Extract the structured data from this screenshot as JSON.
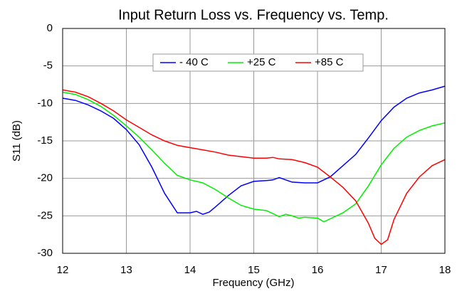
{
  "chart_data": {
    "type": "line",
    "title": "Input Return Loss vs. Frequency vs. Temp.",
    "xlabel": "Frequency (GHz)",
    "ylabel": "S11 (dB)",
    "xlim": [
      12,
      18
    ],
    "xticks": [
      12,
      13,
      14,
      15,
      16,
      17,
      18
    ],
    "ylim": [
      -30,
      0
    ],
    "yticks": [
      0,
      -5,
      -10,
      -15,
      -20,
      -25,
      -30
    ],
    "grid": true,
    "legend": "top",
    "series": [
      {
        "name": "- 40 C",
        "color": "#0000ff",
        "x": [
          12,
          12.2,
          12.4,
          12.6,
          12.8,
          13,
          13.2,
          13.4,
          13.6,
          13.8,
          14,
          14.1,
          14.2,
          14.3,
          14.4,
          14.6,
          14.8,
          15,
          15.2,
          15.3,
          15.4,
          15.5,
          15.6,
          15.8,
          16,
          16.2,
          16.4,
          16.6,
          16.8,
          17,
          17.2,
          17.4,
          17.6,
          17.8,
          18
        ],
        "values": [
          -9.3,
          -9.6,
          -10.2,
          -11,
          -12,
          -13.5,
          -15.5,
          -18.5,
          -22,
          -24.6,
          -24.6,
          -24.4,
          -24.8,
          -24.5,
          -23.8,
          -22.3,
          -21,
          -20.4,
          -20.3,
          -20.2,
          -19.9,
          -20.2,
          -20.5,
          -20.6,
          -20.6,
          -19.8,
          -18.3,
          -16.8,
          -14.6,
          -12.3,
          -10.5,
          -9.3,
          -8.6,
          -8.2,
          -7.7
        ]
      },
      {
        "name": "+25 C",
        "color": "#00ee00",
        "x": [
          12,
          12.2,
          12.4,
          12.6,
          12.8,
          13,
          13.2,
          13.4,
          13.6,
          13.8,
          14,
          14.2,
          14.4,
          14.6,
          14.8,
          15,
          15.2,
          15.4,
          15.5,
          15.6,
          15.7,
          15.8,
          16,
          16.1,
          16.2,
          16.4,
          16.6,
          16.8,
          17,
          17.2,
          17.4,
          17.6,
          17.8,
          18
        ],
        "values": [
          -8.5,
          -8.8,
          -9.5,
          -10.4,
          -11.6,
          -13,
          -14.5,
          -16.2,
          -18,
          -19.6,
          -20.2,
          -20.6,
          -21.5,
          -22.6,
          -23.6,
          -24.1,
          -24.3,
          -25.1,
          -24.8,
          -25,
          -25.3,
          -25.2,
          -25.3,
          -25.8,
          -25.4,
          -24.6,
          -23.4,
          -21,
          -18.2,
          -16,
          -14.5,
          -13.6,
          -13,
          -12.6
        ]
      },
      {
        "name": "+85 C",
        "color": "#ff0000",
        "x": [
          12,
          12.2,
          12.4,
          12.6,
          12.8,
          13,
          13.2,
          13.4,
          13.6,
          13.8,
          14,
          14.2,
          14.4,
          14.6,
          14.8,
          15,
          15.2,
          15.3,
          15.4,
          15.6,
          15.8,
          16,
          16.2,
          16.4,
          16.6,
          16.8,
          16.9,
          17,
          17.1,
          17.2,
          17.4,
          17.6,
          17.8,
          18
        ],
        "values": [
          -8.2,
          -8.5,
          -9.1,
          -10,
          -11,
          -12.2,
          -13.2,
          -14.2,
          -15,
          -15.6,
          -15.9,
          -16.2,
          -16.5,
          -16.9,
          -17.1,
          -17.3,
          -17.3,
          -17.2,
          -17.4,
          -17.5,
          -17.9,
          -18.5,
          -19.8,
          -21.2,
          -23,
          -26,
          -28,
          -28.8,
          -28.2,
          -25.5,
          -22,
          -19.8,
          -18.3,
          -17.5
        ]
      }
    ]
  }
}
